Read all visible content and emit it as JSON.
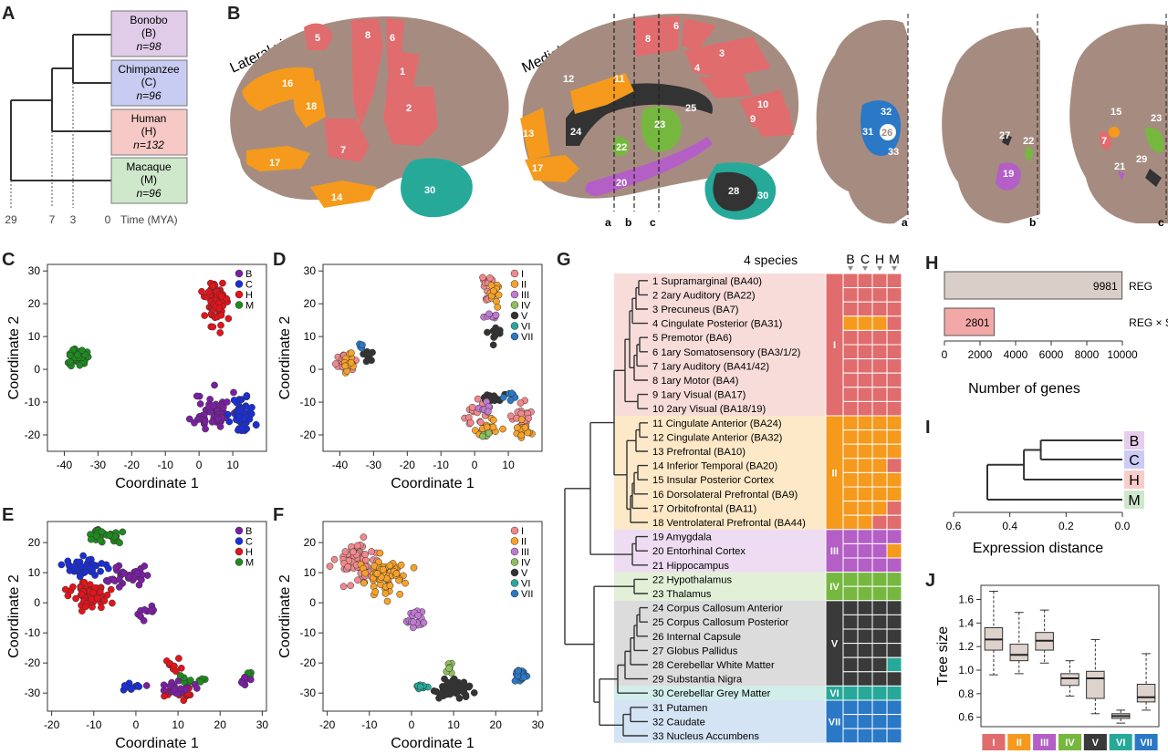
{
  "panels": {
    "A": {
      "letter": "A",
      "time_label": "Time (MYA)",
      "ticks": [
        "29",
        "7",
        "3",
        "0"
      ],
      "species": [
        {
          "name": "Bonobo",
          "code": "(B)",
          "n": "n=98",
          "color": "#e0cbe8"
        },
        {
          "name": "Chimpanzee",
          "code": "(C)",
          "n": "n=96",
          "color": "#c8cbf2"
        },
        {
          "name": "Human",
          "code": "(H)",
          "n": "n=132",
          "color": "#f7c9c6"
        },
        {
          "name": "Macaque",
          "code": "(M)",
          "n": "n=96",
          "color": "#cfe8cc"
        }
      ]
    },
    "B": {
      "letter": "B",
      "lateral": "Lateral view",
      "medial": "Medial view",
      "cut_labels": [
        "a",
        "b",
        "c"
      ],
      "region_numbers": [
        "1",
        "2",
        "3",
        "4",
        "5",
        "6",
        "7",
        "8",
        "9",
        "10",
        "11",
        "12",
        "13",
        "14",
        "15",
        "16",
        "17",
        "18",
        "19",
        "20",
        "21",
        "22",
        "23",
        "24",
        "25",
        "26",
        "27",
        "28",
        "29",
        "30",
        "31",
        "32",
        "33"
      ]
    },
    "C": {
      "letter": "C"
    },
    "D": {
      "letter": "D"
    },
    "E": {
      "letter": "E"
    },
    "F": {
      "letter": "F"
    },
    "G": {
      "letter": "G",
      "title": "4 species",
      "cols": [
        "B",
        "C",
        "H",
        "M"
      ],
      "groups": [
        {
          "id": "I",
          "color": "#e06c6e",
          "bg": "#f8dcda",
          "start": 0,
          "end": 9
        },
        {
          "id": "II",
          "color": "#f59a1c",
          "bg": "#fde9c8",
          "start": 10,
          "end": 17
        },
        {
          "id": "III",
          "color": "#b45fc6",
          "bg": "#eedcf2",
          "start": 18,
          "end": 20
        },
        {
          "id": "IV",
          "color": "#76b83f",
          "bg": "#e3f0d8",
          "start": 21,
          "end": 22
        },
        {
          "id": "V",
          "color": "#3a3a3a",
          "bg": "#dcdcdc",
          "start": 23,
          "end": 28
        },
        {
          "id": "VI",
          "color": "#27a99a",
          "bg": "#d2eeea",
          "start": 29,
          "end": 29
        },
        {
          "id": "VII",
          "color": "#2a78c6",
          "bg": "#d4e4f4",
          "start": 30,
          "end": 32
        }
      ],
      "regions": [
        "1 Supramarginal (BA40)",
        "2 2ary Auditory (BA22)",
        "3 Precuneus (BA7)",
        "4 Cingulate Posterior (BA31)",
        "5 Premotor (BA6)",
        "6 1ary Somatosensory (BA3/1/2)",
        "7 1ary Auditory (BA41/42)",
        "8 1ary Motor (BA4)",
        "9 1ary Visual (BA17)",
        "10 2ary Visual (BA18/19)",
        "11 Cingulate Anterior (BA24)",
        "12 Cingulate Anterior (BA32)",
        "13 Prefrontal (BA10)",
        "14 Inferior Temporal (BA20)",
        "15 Insular Posterior Cortex",
        "16 Dorsolateral Prefrontal (BA9)",
        "17 Orbitofrontal (BA11)",
        "18 Ventrolateral Prefrontal (BA44)",
        "19 Amygdala",
        "20 Entorhinal Cortex",
        "21 Hippocampus",
        "22 Hypothalamus",
        "23 Thalamus",
        "24 Corpus Callosum Anterior",
        "25 Corpus Callosum Posterior",
        "26 Internal Capsule",
        "27 Globus Pallidus",
        "28 Cerebellar White Matter",
        "29 Substantia Nigra",
        "30 Cerebellar Grey Matter",
        "31 Putamen",
        "32 Caudate",
        "33 Nucleus Accumbens"
      ]
    },
    "H": {
      "letter": "H"
    },
    "I": {
      "letter": "I"
    },
    "J": {
      "letter": "J"
    }
  },
  "chart_data": [
    {
      "panel": "C",
      "type": "scatter",
      "xlabel": "Coordinate 1",
      "ylabel": "Coordinate 2",
      "xlim": [
        -45,
        20
      ],
      "ylim": [
        -25,
        32
      ],
      "xticks": [
        -40,
        -30,
        -20,
        -10,
        0,
        10
      ],
      "yticks": [
        -20,
        -10,
        0,
        10,
        20,
        30
      ],
      "legend_position": "top-right",
      "series": [
        {
          "name": "B",
          "color": "#7b1fa2"
        },
        {
          "name": "C",
          "color": "#1b2fd6"
        },
        {
          "name": "H",
          "color": "#e3141b"
        },
        {
          "name": "M",
          "color": "#1f8a1f"
        }
      ],
      "clusters": [
        {
          "series": 0,
          "cx": 4,
          "cy": -13,
          "sx": 4.5,
          "sy": 5,
          "n": 55
        },
        {
          "series": 1,
          "cx": 13,
          "cy": -14,
          "sx": 3,
          "sy": 5,
          "n": 50
        },
        {
          "series": 2,
          "cx": 5,
          "cy": 20,
          "sx": 2.5,
          "sy": 7,
          "n": 60
        },
        {
          "series": 3,
          "cx": -36,
          "cy": 4,
          "sx": 3,
          "sy": 2,
          "n": 45
        }
      ]
    },
    {
      "panel": "D",
      "type": "scatter",
      "xlabel": "Coordinate 1",
      "ylabel": "Coordinate 2",
      "xlim": [
        -45,
        20
      ],
      "ylim": [
        -25,
        32
      ],
      "xticks": [
        -40,
        -30,
        -20,
        -10,
        0,
        10
      ],
      "yticks": [
        -20,
        -10,
        0,
        10,
        20,
        30
      ],
      "legend_position": "top-right",
      "series": [
        {
          "name": "I",
          "color": "#f0888c"
        },
        {
          "name": "II",
          "color": "#f6a22a"
        },
        {
          "name": "III",
          "color": "#c07ad2"
        },
        {
          "name": "IV",
          "color": "#8cc05a"
        },
        {
          "name": "V",
          "color": "#333333"
        },
        {
          "name": "VI",
          "color": "#27a99a"
        },
        {
          "name": "VII",
          "color": "#2a78c6"
        }
      ],
      "clusters": [
        {
          "series": 0,
          "cx": -38,
          "cy": 2,
          "sx": 2,
          "sy": 2,
          "n": 25
        },
        {
          "series": 1,
          "cx": -37,
          "cy": 2,
          "sx": 2,
          "sy": 2,
          "n": 15
        },
        {
          "series": 4,
          "cx": -32,
          "cy": 4,
          "sx": 1.5,
          "sy": 1.5,
          "n": 8
        },
        {
          "series": 6,
          "cx": -34,
          "cy": 7,
          "sx": 1,
          "sy": 1,
          "n": 4
        },
        {
          "series": 0,
          "cx": 13,
          "cy": -14,
          "sx": 3,
          "sy": 4,
          "n": 20
        },
        {
          "series": 1,
          "cx": 14,
          "cy": -19,
          "sx": 2,
          "sy": 2,
          "n": 15
        },
        {
          "series": 0,
          "cx": 0,
          "cy": -14,
          "sx": 3,
          "sy": 4,
          "n": 15
        },
        {
          "series": 1,
          "cx": 4,
          "cy": -18,
          "sx": 3,
          "sy": 2,
          "n": 15
        },
        {
          "series": 4,
          "cx": 5,
          "cy": -9,
          "sx": 3,
          "sy": 1.5,
          "n": 15
        },
        {
          "series": 2,
          "cx": 3,
          "cy": -12,
          "sx": 2,
          "sy": 2,
          "n": 8
        },
        {
          "series": 6,
          "cx": 11,
          "cy": -8,
          "sx": 2,
          "sy": 2,
          "n": 6
        },
        {
          "series": 3,
          "cx": 3,
          "cy": -20,
          "sx": 1.5,
          "sy": 1,
          "n": 5
        },
        {
          "series": 0,
          "cx": 4,
          "cy": 26,
          "sx": 1.5,
          "sy": 3,
          "n": 15
        },
        {
          "series": 1,
          "cx": 6,
          "cy": 23,
          "sx": 1.5,
          "sy": 3,
          "n": 12
        },
        {
          "series": 4,
          "cx": 6,
          "cy": 11,
          "sx": 1.5,
          "sy": 2,
          "n": 12
        },
        {
          "series": 2,
          "cx": 5,
          "cy": 16,
          "sx": 1.5,
          "sy": 1,
          "n": 8
        }
      ]
    },
    {
      "panel": "E",
      "type": "scatter",
      "xlabel": "Coordinate 1",
      "ylabel": "Coordinate 2",
      "xlim": [
        -21,
        31
      ],
      "ylim": [
        -36,
        27
      ],
      "xticks": [
        -20,
        -10,
        0,
        10,
        20,
        30
      ],
      "yticks": [
        -30,
        -20,
        -10,
        0,
        10,
        20
      ],
      "legend_position": "top-right",
      "series": [
        {
          "name": "B",
          "color": "#7b1fa2"
        },
        {
          "name": "C",
          "color": "#1b2fd6"
        },
        {
          "name": "H",
          "color": "#e3141b"
        },
        {
          "name": "M",
          "color": "#1f8a1f"
        }
      ],
      "clusters": [
        {
          "series": 3,
          "cx": -7,
          "cy": 22,
          "sx": 3,
          "sy": 2,
          "n": 30
        },
        {
          "series": 1,
          "cx": -12,
          "cy": 12,
          "sx": 4,
          "sy": 2.5,
          "n": 40
        },
        {
          "series": 2,
          "cx": -11,
          "cy": 3,
          "sx": 4,
          "sy": 4,
          "n": 60
        },
        {
          "series": 0,
          "cx": -3,
          "cy": 9,
          "sx": 4,
          "sy": 3,
          "n": 35
        },
        {
          "series": 0,
          "cx": 2,
          "cy": -3,
          "sx": 2,
          "sy": 3,
          "n": 10
        },
        {
          "series": 2,
          "cx": 10,
          "cy": -30,
          "sx": 3,
          "sy": 2,
          "n": 20
        },
        {
          "series": 0,
          "cx": 10,
          "cy": -28,
          "sx": 4,
          "sy": 2,
          "n": 20
        },
        {
          "series": 3,
          "cx": 14,
          "cy": -25,
          "sx": 3,
          "sy": 1.5,
          "n": 10
        },
        {
          "series": 1,
          "cx": -2,
          "cy": -28,
          "sx": 2,
          "sy": 1,
          "n": 10
        },
        {
          "series": 3,
          "cx": 27,
          "cy": -24,
          "sx": 1,
          "sy": 1.5,
          "n": 8
        },
        {
          "series": 0,
          "cx": 26,
          "cy": -26,
          "sx": 1,
          "sy": 1,
          "n": 8
        },
        {
          "series": 2,
          "cx": 9,
          "cy": -20,
          "sx": 1.5,
          "sy": 2,
          "n": 8
        }
      ]
    },
    {
      "panel": "F",
      "type": "scatter",
      "xlabel": "Coordinate 1",
      "ylabel": "Coordinate 2",
      "xlim": [
        -21,
        31
      ],
      "ylim": [
        -36,
        27
      ],
      "xticks": [
        -20,
        -10,
        0,
        10,
        20,
        30
      ],
      "yticks": [
        -30,
        -20,
        -10,
        0,
        10,
        20
      ],
      "legend_position": "top-right",
      "series": [
        {
          "name": "I",
          "color": "#f0888c"
        },
        {
          "name": "II",
          "color": "#f6a22a"
        },
        {
          "name": "III",
          "color": "#c07ad2"
        },
        {
          "name": "IV",
          "color": "#8cc05a"
        },
        {
          "name": "V",
          "color": "#333333"
        },
        {
          "name": "VI",
          "color": "#27a99a"
        },
        {
          "name": "VII",
          "color": "#2a78c6"
        }
      ],
      "clusters": [
        {
          "series": 0,
          "cx": -13,
          "cy": 14,
          "sx": 4,
          "sy": 6,
          "n": 70
        },
        {
          "series": 1,
          "cx": -6,
          "cy": 9,
          "sx": 4,
          "sy": 5,
          "n": 70
        },
        {
          "series": 2,
          "cx": 1,
          "cy": -6,
          "sx": 2.5,
          "sy": 4,
          "n": 20
        },
        {
          "series": 3,
          "cx": 9,
          "cy": -22,
          "sx": 1,
          "sy": 2,
          "n": 8
        },
        {
          "series": 4,
          "cx": 10,
          "cy": -29,
          "sx": 4,
          "sy": 2.5,
          "n": 55
        },
        {
          "series": 5,
          "cx": 2,
          "cy": -28,
          "sx": 1.5,
          "sy": 0.7,
          "n": 10
        },
        {
          "series": 6,
          "cx": 26,
          "cy": -24,
          "sx": 1.2,
          "sy": 1.5,
          "n": 25
        }
      ]
    },
    {
      "panel": "H",
      "type": "bar",
      "orientation": "horizontal",
      "categories": [
        "REG",
        "REG × SP"
      ],
      "values": [
        9981,
        2801
      ],
      "colors": [
        "#d9cfc8",
        "#f3a8a8"
      ],
      "xlabel": "Number of genes",
      "xlim": [
        0,
        10000
      ],
      "xticks": [
        0,
        2000,
        4000,
        6000,
        8000,
        10000
      ]
    },
    {
      "panel": "I",
      "type": "dendrogram",
      "leaves": [
        "B",
        "C",
        "H",
        "M"
      ],
      "leaf_colors": [
        "#e6cdeb",
        "#cbcbf5",
        "#f7cdca",
        "#cfe8cc"
      ],
      "merge_heights": {
        "BC": 0.29,
        "BCH": 0.35,
        "BCHM": 0.48
      },
      "xlabel": "Expression distance",
      "xlim": [
        0.6,
        0
      ],
      "xticks": [
        0.6,
        0.4,
        0.2,
        0.0
      ]
    },
    {
      "panel": "J",
      "type": "box",
      "ylabel": "Tree size",
      "ylim": [
        0.52,
        1.72
      ],
      "yticks": [
        0.6,
        0.8,
        1.0,
        1.2,
        1.4,
        1.6
      ],
      "categories": [
        "I",
        "II",
        "III",
        "IV",
        "V",
        "VI",
        "VII"
      ],
      "colors": [
        "#e06c6e",
        "#f59a1c",
        "#b45fc6",
        "#76b83f",
        "#3a3a3a",
        "#27a99a",
        "#2a78c6"
      ],
      "boxes": [
        {
          "min": 0.96,
          "q1": 1.17,
          "median": 1.26,
          "q3": 1.36,
          "max": 1.67
        },
        {
          "min": 0.97,
          "q1": 1.08,
          "median": 1.13,
          "q3": 1.22,
          "max": 1.49
        },
        {
          "min": 1.06,
          "q1": 1.17,
          "median": 1.25,
          "q3": 1.32,
          "max": 1.51
        },
        {
          "min": 0.78,
          "q1": 0.87,
          "median": 0.93,
          "q3": 0.97,
          "max": 1.08
        },
        {
          "min": 0.63,
          "q1": 0.76,
          "median": 0.93,
          "q3": 0.99,
          "max": 1.26
        },
        {
          "min": 0.55,
          "q1": 0.59,
          "median": 0.61,
          "q3": 0.63,
          "max": 0.66
        },
        {
          "min": 0.66,
          "q1": 0.73,
          "median": 0.77,
          "q3": 0.88,
          "max": 1.14
        }
      ]
    }
  ]
}
